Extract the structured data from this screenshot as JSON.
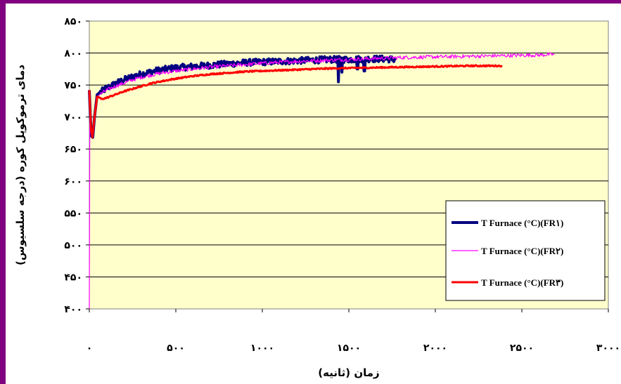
{
  "chart_data": {
    "type": "line",
    "xlabel": "زمان (ثانیه)",
    "ylabel": "دمای ترموکوپل کوره (درجه سلسیوس)",
    "xlim": [
      0,
      3000
    ],
    "ylim": [
      400,
      850
    ],
    "x_ticks": [
      0,
      500,
      1000,
      1500,
      2000,
      2500,
      3000
    ],
    "y_ticks": [
      400,
      450,
      500,
      550,
      600,
      650,
      700,
      750,
      800,
      850
    ],
    "x_tick_labels": [
      "۰",
      "۵۰۰",
      "۱۰۰۰",
      "۱۵۰۰",
      "۲۰۰۰",
      "۲۵۰۰",
      "۳۰۰۰"
    ],
    "y_tick_labels": [
      "۴۰۰",
      "۴۵۰",
      "۵۰۰",
      "۵۵۰",
      "۶۰۰",
      "۶۵۰",
      "۷۰۰",
      "۷۵۰",
      "۸۰۰",
      "۸۵۰"
    ],
    "grid": true,
    "legend_position": "right",
    "plot_background": "#ffffcc",
    "series": [
      {
        "name": "T Furnace (°C)(FR۱)",
        "color": "#000080",
        "points": [
          [
            0,
            742
          ],
          [
            6,
            700
          ],
          [
            12,
            670
          ],
          [
            20,
            668
          ],
          [
            30,
            700
          ],
          [
            45,
            735
          ],
          [
            60,
            738
          ],
          [
            100,
            745
          ],
          [
            150,
            752
          ],
          [
            200,
            758
          ],
          [
            250,
            763
          ],
          [
            300,
            767
          ],
          [
            350,
            770
          ],
          [
            400,
            773
          ],
          [
            450,
            775
          ],
          [
            500,
            777
          ],
          [
            600,
            779
          ],
          [
            700,
            781
          ],
          [
            800,
            783
          ],
          [
            900,
            785
          ],
          [
            1000,
            786
          ],
          [
            1100,
            787
          ],
          [
            1200,
            788
          ],
          [
            1300,
            789
          ],
          [
            1400,
            790
          ],
          [
            1500,
            790
          ],
          [
            1600,
            791
          ],
          [
            1700,
            791
          ],
          [
            1770,
            790
          ]
        ],
        "noise": 5,
        "dips": [
          [
            1440,
            755
          ],
          [
            1460,
            770
          ],
          [
            1550,
            775
          ],
          [
            1590,
            772
          ]
        ]
      },
      {
        "name": "T Furnace (°C)(FR۲)",
        "color": "#ff00ff",
        "points": [
          [
            0,
            400
          ],
          [
            3,
            700
          ],
          [
            8,
            680
          ],
          [
            15,
            668
          ],
          [
            25,
            690
          ],
          [
            40,
            730
          ],
          [
            60,
            735
          ],
          [
            100,
            742
          ],
          [
            150,
            748
          ],
          [
            200,
            753
          ],
          [
            250,
            758
          ],
          [
            300,
            762
          ],
          [
            350,
            765
          ],
          [
            400,
            768
          ],
          [
            500,
            772
          ],
          [
            600,
            775
          ],
          [
            700,
            778
          ],
          [
            800,
            780
          ],
          [
            900,
            782
          ],
          [
            1000,
            784
          ],
          [
            1200,
            787
          ],
          [
            1400,
            789
          ],
          [
            1600,
            791
          ],
          [
            1800,
            793
          ],
          [
            2000,
            794
          ],
          [
            2200,
            795
          ],
          [
            2400,
            796
          ],
          [
            2600,
            797
          ],
          [
            2690,
            798
          ]
        ],
        "noise": 3,
        "dips": []
      },
      {
        "name": "T Furnace (°C)(FR۳)",
        "color": "#ff0000",
        "points": [
          [
            0,
            742
          ],
          [
            5,
            710
          ],
          [
            10,
            680
          ],
          [
            18,
            668
          ],
          [
            30,
            700
          ],
          [
            45,
            732
          ],
          [
            70,
            728
          ],
          [
            100,
            730
          ],
          [
            150,
            735
          ],
          [
            200,
            740
          ],
          [
            250,
            744
          ],
          [
            300,
            748
          ],
          [
            350,
            752
          ],
          [
            400,
            755
          ],
          [
            500,
            760
          ],
          [
            600,
            764
          ],
          [
            700,
            767
          ],
          [
            800,
            769
          ],
          [
            900,
            771
          ],
          [
            1000,
            772
          ],
          [
            1200,
            774
          ],
          [
            1400,
            776
          ],
          [
            1600,
            777
          ],
          [
            1800,
            778
          ],
          [
            2000,
            779
          ],
          [
            2200,
            780
          ],
          [
            2385,
            780
          ]
        ],
        "noise": 1,
        "dips": []
      }
    ]
  }
}
